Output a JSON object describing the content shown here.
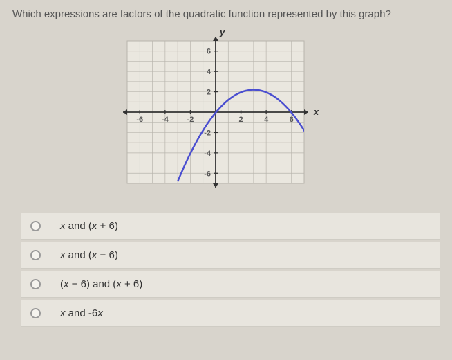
{
  "question": "Which expressions are factors of the quadratic function represented by this graph?",
  "graph": {
    "type": "line",
    "xlim": [
      -7,
      7
    ],
    "ylim": [
      -7,
      7
    ],
    "xtick_step": 1,
    "ytick_step": 1,
    "x_major_labels": [
      -6,
      -4,
      -2,
      2,
      4,
      6
    ],
    "y_major_labels": [
      -6,
      -4,
      -2,
      2,
      4,
      6
    ],
    "x_axis_label": "x",
    "y_axis_label": "y",
    "background_color": "#eae7df",
    "grid_color": "#b8b5ad",
    "axis_color": "#333333",
    "curve_color": "#4a4ed0",
    "curve_width": 2.5,
    "label_fontsize": 11,
    "axis_label_fontsize": 13,
    "parabola": {
      "vertex": [
        3,
        2.2
      ],
      "a": -0.25,
      "xrange": [
        -3,
        8
      ]
    }
  },
  "options": [
    {
      "html": "<i>x</i> <span class='nonitalic'>and (</span><i>x</i> <span class='nonitalic'>+ 6)</span>"
    },
    {
      "html": "<i>x</i> <span class='nonitalic'>and (</span><i>x</i> <span class='nonitalic'>− 6)</span>"
    },
    {
      "html": "<span class='nonitalic'>(</span><i>x</i> <span class='nonitalic'>− 6) and (</span><i>x</i> <span class='nonitalic'>+ 6)</span>"
    },
    {
      "html": "<i>x</i> <span class='nonitalic'>and -6</span><i>x</i>"
    }
  ]
}
